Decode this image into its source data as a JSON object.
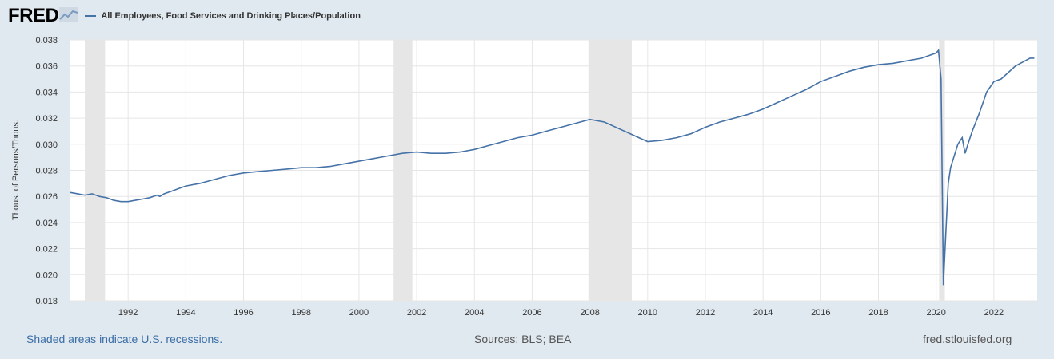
{
  "brand": {
    "logo_text": "FRED"
  },
  "legend": {
    "series_label": "All Employees, Food Services and Drinking Places/Population",
    "color": "#4572a7"
  },
  "footer": {
    "note": "Shaded areas indicate U.S. recessions.",
    "sources": "Sources: BLS; BEA",
    "site": "fred.stlouisfed.org"
  },
  "colors": {
    "background": "#e1e9f0",
    "plot_bg": "#ffffff",
    "recession": "#e6e6e6",
    "line": "#4572a7",
    "grid": "#e6e6e6"
  },
  "chart_data": {
    "type": "line",
    "title": "",
    "xlabel": "",
    "ylabel": "Thous. of Persons/Thous.",
    "xlim": [
      1990.0,
      2023.5
    ],
    "ylim": [
      0.018,
      0.038
    ],
    "yticks": [
      0.018,
      0.02,
      0.022,
      0.024,
      0.026,
      0.028,
      0.03,
      0.032,
      0.034,
      0.036,
      0.038
    ],
    "ytick_labels": [
      "0.018",
      "0.020",
      "0.022",
      "0.024",
      "0.026",
      "0.028",
      "0.030",
      "0.032",
      "0.034",
      "0.036",
      "0.038"
    ],
    "xticks": [
      1992,
      1994,
      1996,
      1998,
      2000,
      2002,
      2004,
      2006,
      2008,
      2010,
      2012,
      2014,
      2016,
      2018,
      2020,
      2022
    ],
    "xtick_labels": [
      "1992",
      "1994",
      "1996",
      "1998",
      "2000",
      "2002",
      "2004",
      "2006",
      "2008",
      "2010",
      "2012",
      "2014",
      "2016",
      "2018",
      "2020",
      "2022"
    ],
    "grid": true,
    "legend_position": "top-left",
    "recessions": [
      [
        1990.5,
        1991.2
      ],
      [
        2001.2,
        2001.85
      ],
      [
        2007.95,
        2009.45
      ],
      [
        2020.1,
        2020.3
      ]
    ],
    "series": [
      {
        "name": "All Employees, Food Services and Drinking Places/Population",
        "x": [
          1990.0,
          1990.25,
          1990.5,
          1990.75,
          1991.0,
          1991.25,
          1991.5,
          1991.75,
          1992.0,
          1992.25,
          1992.5,
          1992.75,
          1993.0,
          1993.1,
          1993.25,
          1993.5,
          1993.75,
          1994.0,
          1994.5,
          1995.0,
          1995.5,
          1996.0,
          1996.5,
          1997.0,
          1997.5,
          1998.0,
          1998.5,
          1999.0,
          1999.5,
          2000.0,
          2000.5,
          2000.75,
          2001.0,
          2001.5,
          2002.0,
          2002.5,
          2003.0,
          2003.5,
          2004.0,
          2004.5,
          2005.0,
          2005.5,
          2006.0,
          2006.5,
          2007.0,
          2007.5,
          2008.0,
          2008.5,
          2009.0,
          2009.5,
          2010.0,
          2010.5,
          2011.0,
          2011.5,
          2012.0,
          2012.5,
          2013.0,
          2013.5,
          2014.0,
          2014.5,
          2015.0,
          2015.5,
          2016.0,
          2016.5,
          2017.0,
          2017.5,
          2018.0,
          2018.5,
          2019.0,
          2019.5,
          2020.0,
          2020.08,
          2020.17,
          2020.25,
          2020.33,
          2020.42,
          2020.5,
          2020.75,
          2020.9,
          2021.0,
          2021.1,
          2021.25,
          2021.5,
          2021.75,
          2022.0,
          2022.25,
          2022.5,
          2022.75,
          2023.0,
          2023.25,
          2023.4
        ],
        "values": [
          0.0263,
          0.0262,
          0.0261,
          0.0262,
          0.026,
          0.0259,
          0.0257,
          0.0256,
          0.0256,
          0.0257,
          0.0258,
          0.0259,
          0.0261,
          0.026,
          0.0262,
          0.0264,
          0.0266,
          0.0268,
          0.027,
          0.0273,
          0.0276,
          0.0278,
          0.0279,
          0.028,
          0.0281,
          0.0282,
          0.0282,
          0.0283,
          0.0285,
          0.0287,
          0.0289,
          0.029,
          0.0291,
          0.0293,
          0.0294,
          0.0293,
          0.0293,
          0.0294,
          0.0296,
          0.0299,
          0.0302,
          0.0305,
          0.0307,
          0.031,
          0.0313,
          0.0316,
          0.0319,
          0.0317,
          0.0312,
          0.0307,
          0.0302,
          0.0303,
          0.0305,
          0.0308,
          0.0313,
          0.0317,
          0.032,
          0.0323,
          0.0327,
          0.0332,
          0.0337,
          0.0342,
          0.0348,
          0.0352,
          0.0356,
          0.0359,
          0.0361,
          0.0362,
          0.0364,
          0.0366,
          0.037,
          0.0372,
          0.035,
          0.0192,
          0.023,
          0.027,
          0.0282,
          0.03,
          0.0305,
          0.0293,
          0.03,
          0.031,
          0.0324,
          0.034,
          0.0348,
          0.035,
          0.0355,
          0.036,
          0.0363,
          0.0366,
          0.0366
        ]
      }
    ]
  }
}
